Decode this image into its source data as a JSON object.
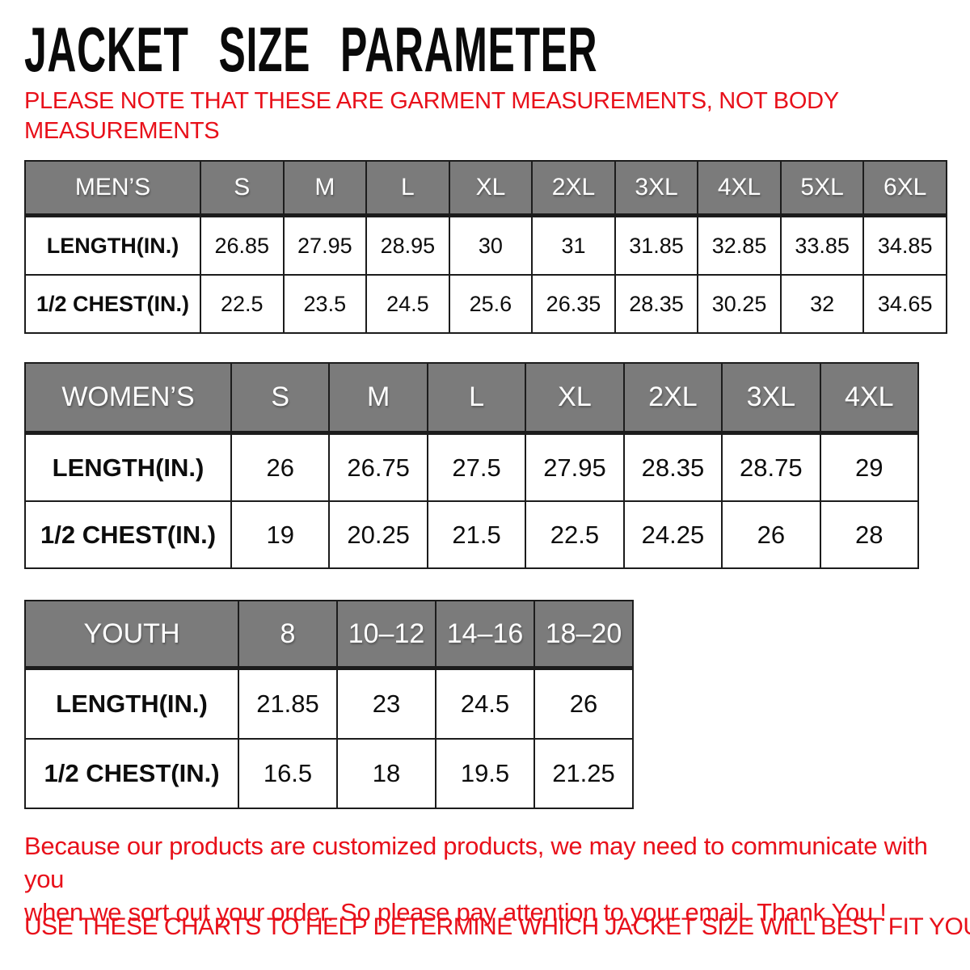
{
  "page": {
    "title": "JACKET SIZE PARAMETER",
    "note_line1": "PLEASE NOTE THAT THESE ARE GARMENT MEASUREMENTS, NOT BODY",
    "note_line2": "MEASUREMENTS"
  },
  "tables": [
    {
      "name": "MEN’S",
      "sizes": [
        "S",
        "M",
        "L",
        "XL",
        "2XL",
        "3XL",
        "4XL",
        "5XL",
        "6XL"
      ],
      "rows": [
        {
          "label": "LENGTH(IN.)",
          "values": [
            "26.85",
            "27.95",
            "28.95",
            "30",
            "31",
            "31.85",
            "32.85",
            "33.85",
            "34.85"
          ]
        },
        {
          "label": "1/2 CHEST(IN.)",
          "values": [
            "22.5",
            "23.5",
            "24.5",
            "25.6",
            "26.35",
            "28.35",
            "30.25",
            "32",
            "34.65"
          ]
        }
      ]
    },
    {
      "name": "WOMEN’S",
      "sizes": [
        "S",
        "M",
        "L",
        "XL",
        "2XL",
        "3XL",
        "4XL"
      ],
      "rows": [
        {
          "label": "LENGTH(IN.)",
          "values": [
            "26",
            "26.75",
            "27.5",
            "27.95",
            "28.35",
            "28.75",
            "29"
          ]
        },
        {
          "label": "1/2 CHEST(IN.)",
          "values": [
            "19",
            "20.25",
            "21.5",
            "22.5",
            "24.25",
            "26",
            "28"
          ]
        }
      ]
    },
    {
      "name": "YOUTH",
      "sizes": [
        "8",
        "10–12",
        "14–16",
        "18–20"
      ],
      "rows": [
        {
          "label": "LENGTH(IN.)",
          "values": [
            "21.85",
            "23",
            "24.5",
            "26"
          ]
        },
        {
          "label": "1/2 CHEST(IN.)",
          "values": [
            "16.5",
            "18",
            "19.5",
            "21.25"
          ]
        }
      ]
    }
  ],
  "footer": {
    "line1": "Because our products are customized products, we may need to communicate with you",
    "line2": "when we sort out your order. So please pay attention to your email. Thank You !",
    "line3": "USE THESE CHARTS TO HELP DETERMINE WHICH JACKET SIZE WILL BEST FIT YOU."
  },
  "colors": {
    "accent_red": "#e8101a",
    "header_gray": "#7b7b7b",
    "border_black": "#1c1c1c"
  }
}
